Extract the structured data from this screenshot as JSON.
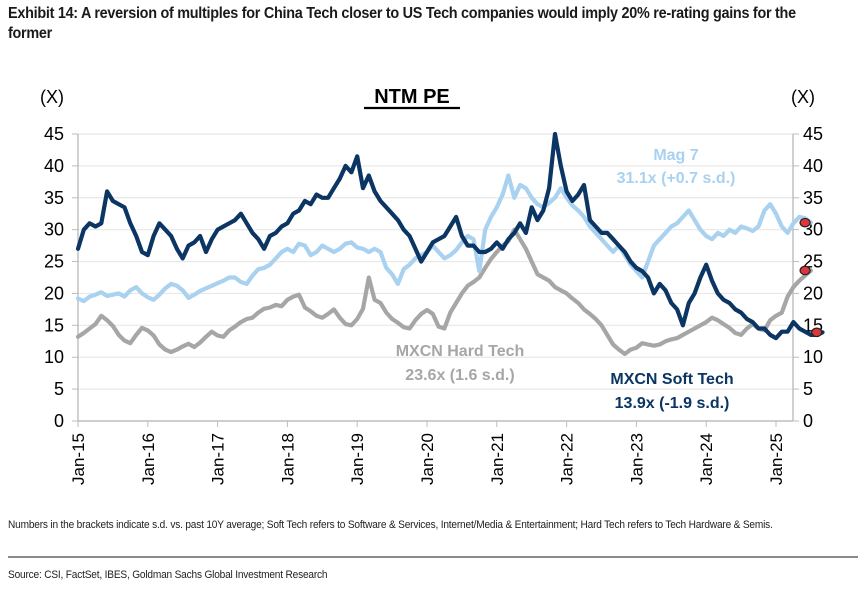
{
  "exhibit_title": "Exhibit 14: A reversion of multiples for China Tech closer to US Tech companies would imply 20% re-rating gains for the former",
  "chart_data": {
    "type": "line",
    "title": "NTM PE",
    "ylabel_left": "(X)",
    "ylabel_right": "(X)",
    "ylim": [
      0,
      45
    ],
    "yticks": [
      0,
      5,
      10,
      15,
      20,
      25,
      30,
      35,
      40,
      45
    ],
    "xlim": [
      "Jan-15",
      "Feb-25"
    ],
    "xticks": [
      "Jan-15",
      "Jan-16",
      "Jan-17",
      "Jan-18",
      "Jan-19",
      "Jan-20",
      "Jan-21",
      "Jan-22",
      "Jan-23",
      "Jan-24",
      "Jan-25"
    ],
    "grid": true,
    "x_start_year": 2015,
    "x_step_months": 1,
    "series": [
      {
        "name": "MXCN Hard Tech",
        "color": "#a6a6a6",
        "label_line1": "MXCN Hard Tech",
        "label_line2": "23.6x (1.6 s.d.)",
        "latest": 23.6,
        "values": [
          13.2,
          13.8,
          14.5,
          15.2,
          16.5,
          15.8,
          14.9,
          13.5,
          12.6,
          12.2,
          13.5,
          14.6,
          14.2,
          13.4,
          12.0,
          11.2,
          10.8,
          11.2,
          11.7,
          12.1,
          11.6,
          12.3,
          13.2,
          14.0,
          13.4,
          13.2,
          14.2,
          14.8,
          15.5,
          16.0,
          16.2,
          17.0,
          17.6,
          17.8,
          18.2,
          18.0,
          19.0,
          19.5,
          19.8,
          17.8,
          17.2,
          16.5,
          16.2,
          16.8,
          17.5,
          16.2,
          15.2,
          15.0,
          16.0,
          17.6,
          22.5,
          19.0,
          18.5,
          17.0,
          16.0,
          15.4,
          14.7,
          14.5,
          15.8,
          16.8,
          17.4,
          16.8,
          14.8,
          14.5,
          17.0,
          18.5,
          20.0,
          21.2,
          21.8,
          22.5,
          24.0,
          25.4,
          26.5,
          27.5,
          28.2,
          30.0,
          28.5,
          27.0,
          25.0,
          23.0,
          22.5,
          22.0,
          21.0,
          20.5,
          20.0,
          19.2,
          18.5,
          17.5,
          16.8,
          16.0,
          15.0,
          13.5,
          12.0,
          11.2,
          10.5,
          11.2,
          11.5,
          12.2,
          12.0,
          11.8,
          12.0,
          12.5,
          12.8,
          13.0,
          13.5,
          14.0,
          14.5,
          15.0,
          15.5,
          16.2,
          15.8,
          15.2,
          14.6,
          13.8,
          13.5,
          14.5,
          15.2,
          14.5,
          14.2,
          15.8,
          16.5,
          17.0,
          19.5,
          21.0,
          22.0,
          22.8,
          23.6
        ]
      },
      {
        "name": "Mag 7",
        "color": "#a9d1f0",
        "label_line1": "Mag 7",
        "label_line2": "31.1x (+0.7 s.d.)",
        "latest": 31.1,
        "values": [
          19.2,
          18.8,
          19.5,
          19.8,
          20.2,
          19.6,
          19.8,
          20.0,
          19.5,
          20.5,
          21.0,
          20.0,
          19.4,
          19.0,
          19.8,
          20.8,
          21.5,
          21.2,
          20.5,
          19.3,
          19.8,
          20.4,
          20.8,
          21.2,
          21.6,
          22.0,
          22.5,
          22.5,
          21.8,
          21.5,
          22.8,
          23.8,
          24.0,
          24.5,
          25.5,
          26.5,
          27.0,
          26.5,
          27.8,
          27.5,
          26.0,
          26.5,
          27.5,
          27.0,
          26.5,
          27.0,
          27.8,
          28.0,
          27.2,
          27.0,
          26.5,
          27.0,
          26.5,
          24.0,
          23.0,
          21.5,
          23.8,
          24.5,
          25.5,
          26.0,
          26.5,
          27.5,
          26.5,
          25.5,
          26.0,
          26.8,
          28.0,
          29.0,
          28.5,
          23.5,
          30.0,
          32.0,
          33.5,
          35.5,
          38.5,
          35.0,
          37.0,
          36.5,
          35.0,
          34.0,
          33.5,
          34.2,
          35.0,
          36.5,
          35.0,
          33.8,
          33.0,
          32.0,
          30.5,
          29.5,
          28.5,
          27.5,
          26.5,
          27.5,
          26.0,
          24.5,
          23.5,
          22.5,
          25.0,
          27.5,
          28.5,
          29.5,
          30.5,
          31.0,
          32.0,
          33.0,
          31.5,
          30.0,
          29.0,
          28.5,
          29.5,
          29.0,
          30.0,
          29.5,
          30.5,
          30.2,
          29.8,
          30.5,
          33.0,
          34.0,
          32.5,
          30.5,
          29.5,
          31.0,
          32.0,
          31.8,
          31.1
        ]
      },
      {
        "name": "MXCN Soft Tech",
        "color": "#0b3563",
        "label_line1": "MXCN Soft Tech",
        "label_line2": "13.9x (-1.9 s.d.)",
        "latest": 13.9,
        "values": [
          27.0,
          30.0,
          31.0,
          30.5,
          31.0,
          36.0,
          34.5,
          34.0,
          33.5,
          31.0,
          29.0,
          26.5,
          26.0,
          29.0,
          31.0,
          30.0,
          29.0,
          27.0,
          25.5,
          27.5,
          28.0,
          29.0,
          26.5,
          28.5,
          30.0,
          30.5,
          31.0,
          31.5,
          32.5,
          31.0,
          29.5,
          28.5,
          27.0,
          29.0,
          29.5,
          30.5,
          31.0,
          32.5,
          33.0,
          34.5,
          34.0,
          35.5,
          35.0,
          35.0,
          36.5,
          38.0,
          40.0,
          39.0,
          41.5,
          36.5,
          38.5,
          36.0,
          34.5,
          33.5,
          32.5,
          31.5,
          30.0,
          29.0,
          27.0,
          25.0,
          26.5,
          28.0,
          28.5,
          29.0,
          30.5,
          32.0,
          29.0,
          27.5,
          27.5,
          26.5,
          26.5,
          27.0,
          28.0,
          27.0,
          28.5,
          29.5,
          31.0,
          29.5,
          33.5,
          31.5,
          33.0,
          36.5,
          45.0,
          40.0,
          36.0,
          34.5,
          35.5,
          37.0,
          31.5,
          30.5,
          29.5,
          29.5,
          28.5,
          27.5,
          26.5,
          25.0,
          24.0,
          23.5,
          22.5,
          20.0,
          21.5,
          20.5,
          18.5,
          17.5,
          15.0,
          18.5,
          20.0,
          22.5,
          24.5,
          22.0,
          20.0,
          19.0,
          18.5,
          17.5,
          17.0,
          16.0,
          15.5,
          14.5,
          14.5,
          13.5,
          13.0,
          14.0,
          14.0,
          15.5,
          14.5,
          14.0,
          13.5,
          13.5,
          13.9
        ]
      }
    ]
  },
  "footnote": "Numbers in the brackets indicate s.d. vs. past 10Y average; Soft Tech refers to Software & Services, Internet/Media & Entertainment; Hard Tech refers to Tech Hardware & Semis.",
  "source": "Source: CSI, FactSet, IBES, Goldman Sachs Global Investment Research",
  "marker_color": "#d9373c"
}
